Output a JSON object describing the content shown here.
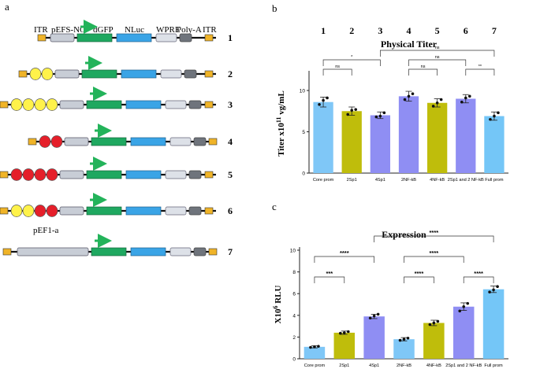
{
  "panel_labels": {
    "a": "a",
    "b": "b",
    "c": "c"
  },
  "colors": {
    "itr": "#f0b428",
    "promoter": "#c8cdd6",
    "dgfp": "#1fa860",
    "nluc": "#3aa4e6",
    "wpre": "#dde1e8",
    "polya": "#6f747c",
    "sp1": "#fff24a",
    "nfkb": "#e51f2a",
    "arrow": "#23b35a",
    "bar_core": "#7fc7f7",
    "bar_sp1": "#bfbd0b",
    "bar_4sp1": "#8f8ef3",
    "bar_full": "#74c6f7"
  },
  "constructs_panel": {
    "labels": {
      "itr_left": "ITR",
      "promoter": "pEFS-NC",
      "dgfp": "dGFP",
      "nluc": "NLuc",
      "wpre": "WPRE",
      "polya": "Poly-A",
      "itr_right": "ITR",
      "pef1a": "pEF1-a"
    },
    "constructs": [
      {
        "number": "1",
        "elements": []
      },
      {
        "number": "2",
        "elements": [
          "sp1",
          "sp1"
        ]
      },
      {
        "number": "3",
        "elements": [
          "sp1",
          "sp1",
          "sp1",
          "sp1"
        ]
      },
      {
        "number": "4",
        "elements": [
          "nfkb",
          "nfkb"
        ]
      },
      {
        "number": "5",
        "elements": [
          "nfkb",
          "nfkb",
          "nfkb",
          "nfkb"
        ]
      },
      {
        "number": "6",
        "elements": [
          "sp1",
          "sp1",
          "nfkb",
          "nfkb"
        ]
      },
      {
        "number": "7",
        "elements": []
      }
    ]
  },
  "chart_data": [
    {
      "type": "bar",
      "title": "Physical Titer",
      "ylabel": "Titer x10^11 vg/mL",
      "ylabel_parts": {
        "base": "Titer x10",
        "exp": "11",
        "rest": " vg/mL"
      },
      "xlabel": "",
      "ylim": [
        0,
        12
      ],
      "yticks": [
        0,
        5,
        10
      ],
      "column_numbers": [
        "1",
        "2",
        "3",
        "4",
        "5",
        "6",
        "7"
      ],
      "categories": [
        "Core prom",
        "2Sp1",
        "4Sp1",
        "2NF-kB",
        "4NF-kB",
        "2Sp1 and 2 NF-kB",
        "Full prom"
      ],
      "values": [
        8.6,
        7.5,
        7.0,
        9.3,
        8.5,
        9.0,
        6.9
      ],
      "errors": [
        0.6,
        0.5,
        0.4,
        0.6,
        0.5,
        0.5,
        0.5
      ],
      "points": [
        [
          8.3,
          8.8,
          9.1
        ],
        [
          7.1,
          7.6,
          7.7
        ],
        [
          6.8,
          6.9,
          7.3
        ],
        [
          8.9,
          9.3,
          9.6
        ],
        [
          8.1,
          8.5,
          8.9
        ],
        [
          8.6,
          9.1,
          9.3
        ],
        [
          6.5,
          6.9,
          7.3
        ]
      ],
      "bar_colors": [
        "#7fc7f7",
        "#bfbd0b",
        "#8f8ef3",
        "#8f8ef3",
        "#bfbd0b",
        "#8f8ef3",
        "#74c6f7"
      ],
      "significance": [
        {
          "from": 0,
          "to": 1,
          "label": "ns",
          "level": 0
        },
        {
          "from": 0,
          "to": 2,
          "label": "*",
          "level": 1
        },
        {
          "from": 3,
          "to": 4,
          "label": "ns",
          "level": 0
        },
        {
          "from": 3,
          "to": 5,
          "label": "ns",
          "level": 1
        },
        {
          "from": 5,
          "to": 6,
          "label": "**",
          "level": 0
        },
        {
          "from": 2,
          "to": 6,
          "label": "ns",
          "level": 2
        }
      ]
    },
    {
      "type": "bar",
      "title": "Expression",
      "ylabel": "X10^6 RLU",
      "ylabel_parts": {
        "base": "X10",
        "exp": "6",
        "rest": " RLU"
      },
      "xlabel": "",
      "ylim": [
        0,
        10
      ],
      "yticks": [
        0,
        2,
        4,
        6,
        8,
        10
      ],
      "categories": [
        "Core prom",
        "2Sp1",
        "4Sp1",
        "2NF-kB",
        "4NF-kB",
        "2Sp1 and 2 NF-kB",
        "Full prom"
      ],
      "values": [
        1.1,
        2.4,
        3.9,
        1.8,
        3.3,
        4.8,
        6.4
      ],
      "errors": [
        0.1,
        0.15,
        0.2,
        0.15,
        0.25,
        0.35,
        0.3
      ],
      "points": [
        [
          1.05,
          1.1,
          1.15
        ],
        [
          2.35,
          2.4,
          2.5
        ],
        [
          3.75,
          3.95,
          4.1
        ],
        [
          1.7,
          1.8,
          1.9
        ],
        [
          3.15,
          3.3,
          3.45
        ],
        [
          4.4,
          4.8,
          5.1
        ],
        [
          6.15,
          6.35,
          6.65
        ]
      ],
      "bar_colors": [
        "#7fc7f7",
        "#bfbd0b",
        "#8f8ef3",
        "#7fc7f7",
        "#bfbd0b",
        "#8f8ef3",
        "#74c6f7"
      ],
      "significance": [
        {
          "from": 0,
          "to": 1,
          "label": "***",
          "level": 0
        },
        {
          "from": 0,
          "to": 2,
          "label": "****",
          "level": 1
        },
        {
          "from": 3,
          "to": 4,
          "label": "****",
          "level": 0
        },
        {
          "from": 3,
          "to": 5,
          "label": "****",
          "level": 1
        },
        {
          "from": 5,
          "to": 6,
          "label": "****",
          "level": 0
        },
        {
          "from": 2,
          "to": 6,
          "label": "****",
          "level": 2
        }
      ]
    }
  ]
}
